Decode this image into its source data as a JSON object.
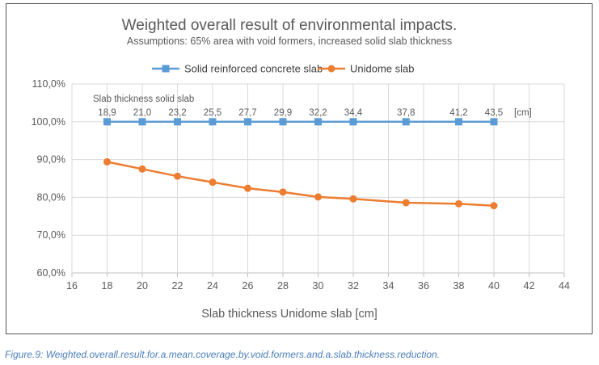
{
  "chart_data": {
    "type": "line",
    "title": "Weighted overall result of environmental impacts.",
    "subtitle": "Assumptions: 65% area with void formers, increased solid slab thickness",
    "xlabel": "Slab thickness Unidome slab [cm]",
    "ylabel": "",
    "xlim": [
      16,
      44
    ],
    "ylim": [
      60,
      110
    ],
    "x_ticks": [
      "16",
      "18",
      "20",
      "22",
      "24",
      "26",
      "28",
      "30",
      "32",
      "34",
      "36",
      "38",
      "40",
      "42",
      "44"
    ],
    "y_ticks": [
      "60,0%",
      "70,0%",
      "80,0%",
      "90,0%",
      "100,0%",
      "110,0%"
    ],
    "grid": true,
    "legend_position": "top",
    "series": [
      {
        "name": "Solid reinforced concrete slab",
        "color": "#5b9bd5",
        "marker": "square",
        "x": [
          18,
          20,
          22,
          24,
          26,
          28,
          30,
          32,
          35,
          38,
          40
        ],
        "y": [
          100,
          100,
          100,
          100,
          100,
          100,
          100,
          100,
          100,
          100,
          100
        ]
      },
      {
        "name": "Unidome slab",
        "color": "#ed7d31",
        "marker": "circle",
        "x": [
          18,
          20,
          22,
          24,
          26,
          28,
          30,
          32,
          35,
          38,
          40
        ],
        "y": [
          89.4,
          87.5,
          85.6,
          84.0,
          82.4,
          81.4,
          80.1,
          79.6,
          78.6,
          78.3,
          77.8
        ]
      }
    ],
    "annotation": {
      "label": "Slab thickness solid slab",
      "unit": "[cm]",
      "x": [
        18,
        20,
        22,
        24,
        26,
        28,
        30,
        32,
        35,
        38,
        40
      ],
      "values": [
        "18,9",
        "21,0",
        "23,2",
        "25,5",
        "27,7",
        "29,9",
        "32,2",
        "34,4",
        "37,8",
        "41,2",
        "43,5"
      ]
    }
  },
  "caption": "Figure.9: Weighted.overall.result.for.a.mean.coverage.by.void.formers.and.a.slab.thickness.reduction."
}
